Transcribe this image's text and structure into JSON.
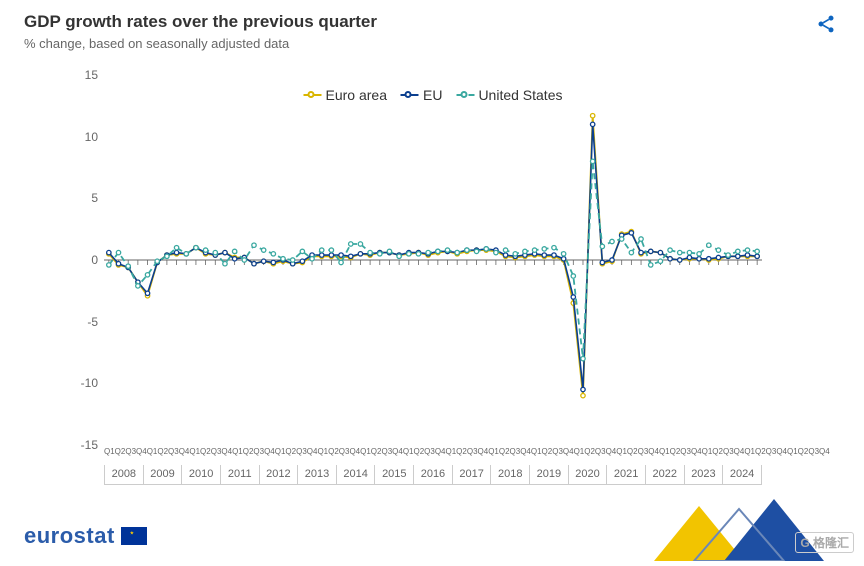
{
  "title": "GDP growth rates over the previous quarter",
  "subtitle": "% change, based on seasonally adjusted data",
  "chart": {
    "type": "line",
    "background_color": "#ffffff",
    "axis_color": "#666666",
    "tick_color": "#666666",
    "title_fontsize": 17,
    "label_fontsize": 12,
    "ylim": [
      -15,
      15
    ],
    "ytick_step": 5,
    "yticks": [
      -15,
      -10,
      -5,
      0,
      5,
      10,
      15
    ],
    "years": [
      "2008",
      "2009",
      "2010",
      "2011",
      "2012",
      "2013",
      "2014",
      "2015",
      "2016",
      "2017",
      "2018",
      "2019",
      "2020",
      "2021",
      "2022",
      "2023",
      "2024"
    ],
    "quarters_per_year": [
      "Q1",
      "Q2",
      "Q3",
      "Q4"
    ],
    "legend": {
      "position": "top-center",
      "fontsize": 14
    },
    "series": [
      {
        "name": "Euro area",
        "color": "#d9b500",
        "style": "solid",
        "marker": "circle",
        "line_width": 1.8,
        "values": [
          0.5,
          -0.4,
          -0.6,
          -1.8,
          -2.9,
          -0.2,
          0.4,
          0.5,
          0.5,
          1.0,
          0.5,
          0.4,
          0.6,
          0.2,
          0.2,
          -0.3,
          -0.1,
          -0.3,
          -0.1,
          -0.3,
          -0.2,
          0.3,
          0.3,
          0.3,
          0.3,
          0.2,
          0.5,
          0.4,
          0.6,
          0.6,
          0.4,
          0.5,
          0.6,
          0.4,
          0.6,
          0.7,
          0.5,
          0.7,
          0.8,
          0.8,
          0.7,
          0.3,
          0.2,
          0.3,
          0.4,
          0.3,
          0.3,
          0.0,
          -3.5,
          -11.0,
          11.7,
          -0.3,
          -0.1,
          2.1,
          2.3,
          0.5,
          0.7,
          0.6,
          0.1,
          0.0,
          0.1,
          0.1,
          0.0,
          0.1,
          0.3,
          0.3,
          0.3,
          0.3
        ]
      },
      {
        "name": "EU",
        "color": "#0b3f8f",
        "style": "solid",
        "marker": "circle",
        "line_width": 1.6,
        "values": [
          0.6,
          -0.3,
          -0.6,
          -1.8,
          -2.7,
          -0.2,
          0.4,
          0.6,
          0.5,
          1.0,
          0.6,
          0.4,
          0.6,
          0.1,
          0.2,
          -0.3,
          -0.1,
          -0.2,
          0.0,
          -0.3,
          -0.1,
          0.4,
          0.4,
          0.4,
          0.4,
          0.3,
          0.5,
          0.5,
          0.6,
          0.6,
          0.4,
          0.6,
          0.6,
          0.5,
          0.7,
          0.7,
          0.6,
          0.8,
          0.8,
          0.9,
          0.8,
          0.4,
          0.3,
          0.4,
          0.5,
          0.4,
          0.4,
          0.1,
          -3.0,
          -10.5,
          11.0,
          -0.2,
          0.0,
          2.0,
          2.2,
          0.6,
          0.7,
          0.6,
          0.1,
          0.0,
          0.2,
          0.1,
          0.1,
          0.2,
          0.3,
          0.3,
          0.4,
          0.3
        ]
      },
      {
        "name": "United States",
        "color": "#3aa8a0",
        "style": "dashed",
        "marker": "circle",
        "line_width": 1.8,
        "values": [
          -0.4,
          0.6,
          -0.5,
          -2.1,
          -1.2,
          -0.1,
          0.3,
          1.0,
          0.5,
          1.0,
          0.8,
          0.6,
          -0.3,
          0.7,
          0.0,
          1.2,
          0.8,
          0.5,
          0.1,
          0.0,
          0.7,
          0.1,
          0.8,
          0.8,
          -0.2,
          1.3,
          1.3,
          0.6,
          0.5,
          0.7,
          0.3,
          0.5,
          0.5,
          0.6,
          0.7,
          0.8,
          0.6,
          0.8,
          0.7,
          0.9,
          0.6,
          0.8,
          0.5,
          0.7,
          0.8,
          0.9,
          1.0,
          0.5,
          -1.3,
          -8.0,
          8.0,
          1.1,
          1.5,
          1.7,
          0.6,
          1.7,
          -0.4,
          -0.1,
          0.8,
          0.6,
          0.6,
          0.5,
          1.2,
          0.8,
          0.4,
          0.7,
          0.8,
          0.7
        ]
      }
    ]
  },
  "footer": {
    "brand": "eurostat"
  },
  "watermark": "G 格隆汇",
  "colors": {
    "share_icon": "#0e65c0",
    "chevron_yellow": "#f2c400",
    "chevron_blue": "#1e4fa3"
  }
}
